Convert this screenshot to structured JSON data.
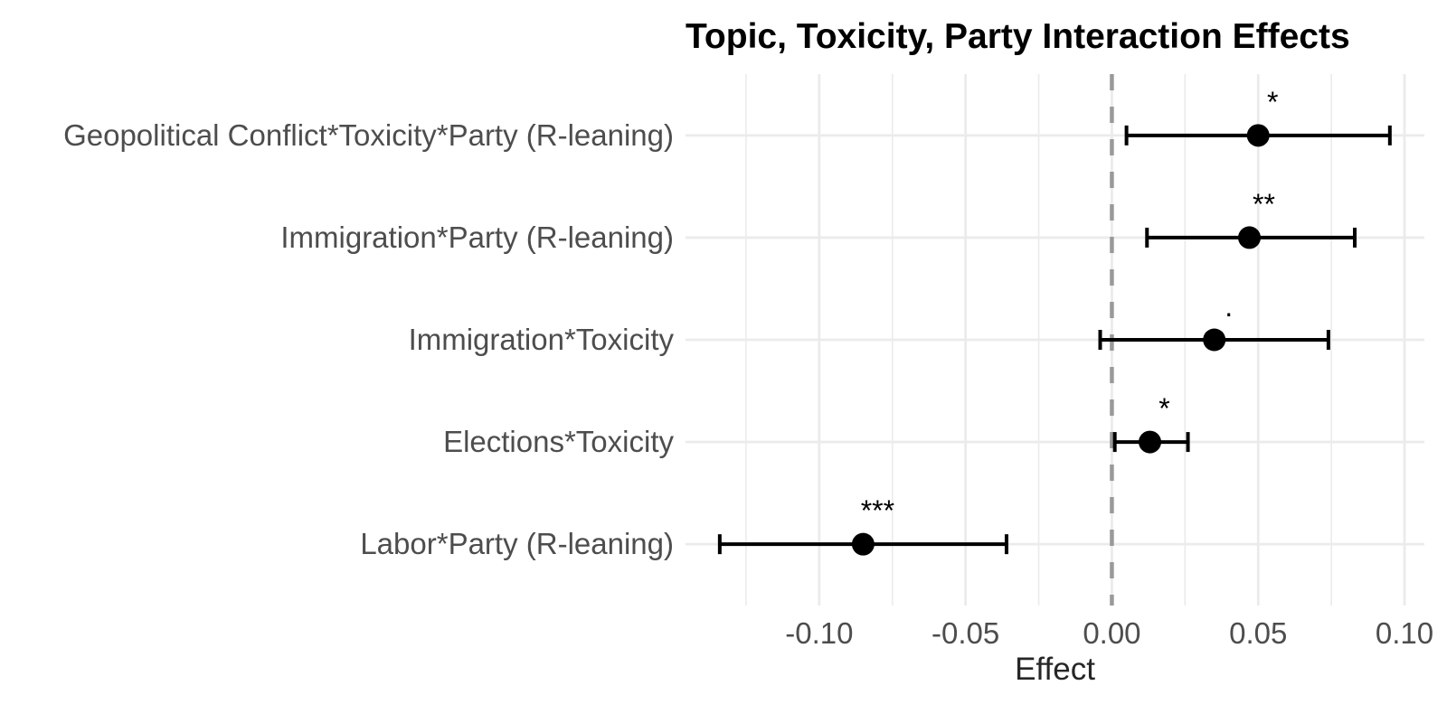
{
  "chart_data": {
    "type": "scatter",
    "subtype": "coefficient-plot-with-error-bars",
    "title": "Topic, Toxicity, Party Interaction Effects",
    "xlabel": "Effect",
    "ylabel": "",
    "grid": true,
    "legend_position": "none",
    "xlim": [
      -0.1457,
      0.1068
    ],
    "x_ticks": [
      {
        "value": -0.1,
        "label": "-0.10"
      },
      {
        "value": -0.05,
        "label": "-0.05"
      },
      {
        "value": 0.0,
        "label": "0.00"
      },
      {
        "value": 0.05,
        "label": "0.05"
      },
      {
        "value": 0.1,
        "label": "0.10"
      }
    ],
    "x_minor_gridlines": [
      -0.125,
      -0.075,
      -0.025,
      0.025,
      0.075
    ],
    "zero_line": {
      "value": 0.0,
      "style": "dashed"
    },
    "series": [
      {
        "label": "Geopolitical Conflict*Toxicity*Party (R-leaning)",
        "estimate": 0.05,
        "ci_low": 0.005,
        "ci_high": 0.095,
        "significance": "*"
      },
      {
        "label": "Immigration*Party (R-leaning)",
        "estimate": 0.047,
        "ci_low": 0.012,
        "ci_high": 0.083,
        "significance": "**"
      },
      {
        "label": "Immigration*Toxicity",
        "estimate": 0.035,
        "ci_low": -0.004,
        "ci_high": 0.074,
        "significance": "."
      },
      {
        "label": "Elections*Toxicity",
        "estimate": 0.013,
        "ci_low": 0.001,
        "ci_high": 0.026,
        "significance": "*"
      },
      {
        "label": "Labor*Party (R-leaning)",
        "estimate": -0.085,
        "ci_low": -0.134,
        "ci_high": -0.036,
        "significance": "***"
      }
    ],
    "colors": {
      "background": "#ffffff",
      "point": "#000000",
      "error_bar": "#000000",
      "gridline": "#ebebeb",
      "zero_line": "#999999",
      "axis_text": "#4d4d4d",
      "title": "#000000",
      "axis_title": "#262626",
      "significance": "#000000"
    }
  }
}
